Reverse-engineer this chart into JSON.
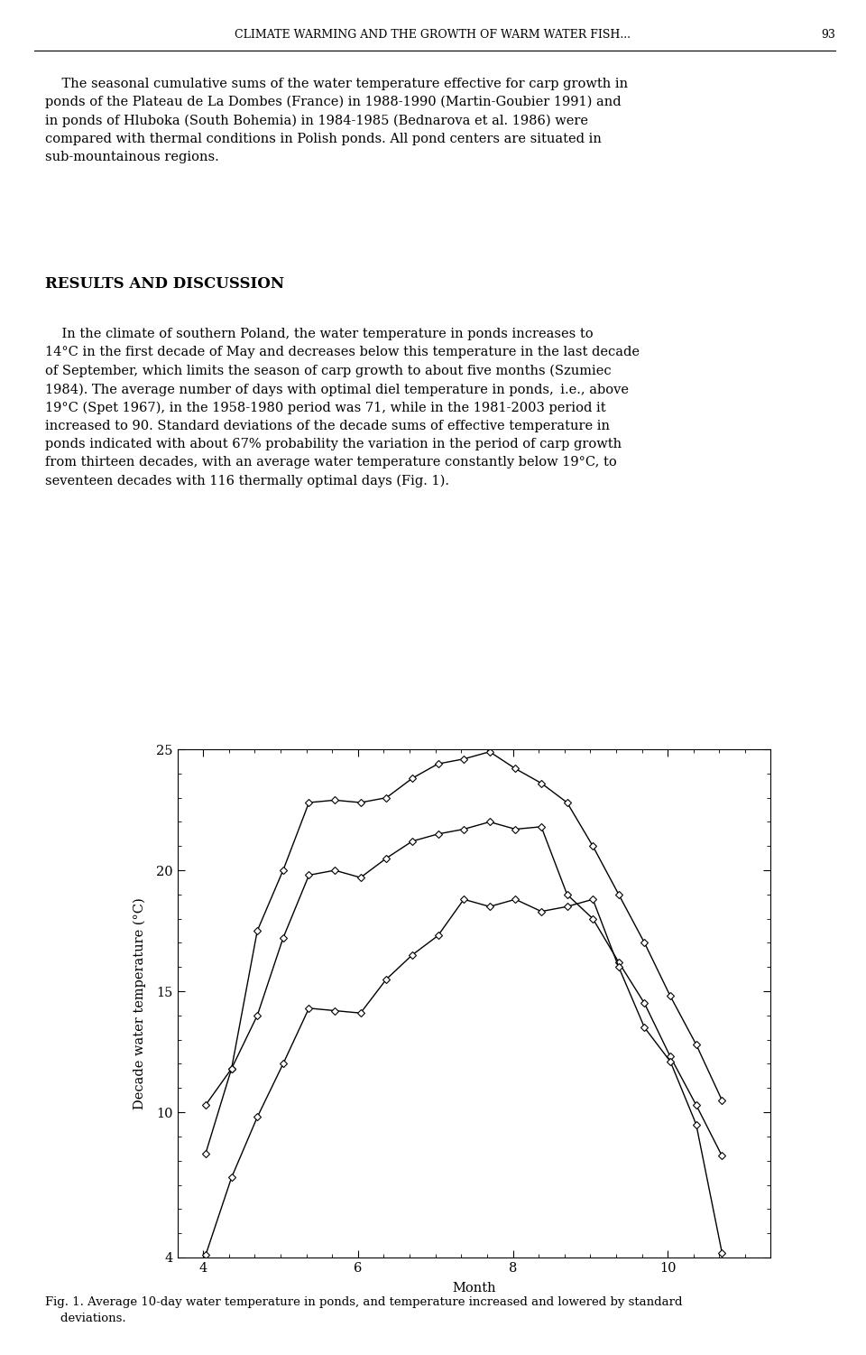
{
  "page_header": "CLIMATE WARMING AND THE GROWTH OF WARM WATER FISH...",
  "page_number": "93",
  "section_title": "RESULTS AND DISCUSSION",
  "fig_caption_line1": "Fig. 1. Average 10-day water temperature in ponds, and temperature increased and lowered by standard",
  "fig_caption_line2": "    deviations.",
  "ylabel": "Decade water temperature (°C)",
  "xlabel": "Month",
  "ylim": [
    4,
    25
  ],
  "yticks": [
    4,
    10,
    15,
    20,
    25
  ],
  "xlim": [
    3.67,
    11.33
  ],
  "xticks": [
    4,
    6,
    8,
    10
  ],
  "avg_curve": [
    [
      4.033,
      10.3
    ],
    [
      4.367,
      11.8
    ],
    [
      4.7,
      14.0
    ],
    [
      5.033,
      17.2
    ],
    [
      5.367,
      19.8
    ],
    [
      5.7,
      20.0
    ],
    [
      6.033,
      19.7
    ],
    [
      6.367,
      20.5
    ],
    [
      6.7,
      21.2
    ],
    [
      7.033,
      21.5
    ],
    [
      7.367,
      21.7
    ],
    [
      7.7,
      22.0
    ],
    [
      8.033,
      21.7
    ],
    [
      8.367,
      21.8
    ],
    [
      8.7,
      19.0
    ],
    [
      9.033,
      18.0
    ],
    [
      9.367,
      16.2
    ],
    [
      9.7,
      14.5
    ],
    [
      10.033,
      12.3
    ],
    [
      10.367,
      10.3
    ],
    [
      10.7,
      8.2
    ]
  ],
  "upper_curve": [
    [
      4.033,
      8.3
    ],
    [
      4.367,
      11.8
    ],
    [
      4.7,
      17.5
    ],
    [
      5.033,
      20.0
    ],
    [
      5.367,
      22.8
    ],
    [
      5.7,
      22.9
    ],
    [
      6.033,
      22.8
    ],
    [
      6.367,
      23.0
    ],
    [
      6.7,
      23.8
    ],
    [
      7.033,
      24.4
    ],
    [
      7.367,
      24.6
    ],
    [
      7.7,
      24.9
    ],
    [
      8.033,
      24.2
    ],
    [
      8.367,
      23.6
    ],
    [
      8.7,
      22.8
    ],
    [
      9.033,
      21.0
    ],
    [
      9.367,
      19.0
    ],
    [
      9.7,
      17.0
    ],
    [
      10.033,
      14.8
    ],
    [
      10.367,
      12.8
    ],
    [
      10.7,
      10.5
    ]
  ],
  "lower_curve": [
    [
      4.033,
      4.1
    ],
    [
      4.367,
      7.3
    ],
    [
      4.7,
      9.8
    ],
    [
      5.033,
      12.0
    ],
    [
      5.367,
      14.3
    ],
    [
      5.7,
      14.2
    ],
    [
      6.033,
      14.1
    ],
    [
      6.367,
      15.5
    ],
    [
      6.7,
      16.5
    ],
    [
      7.033,
      17.3
    ],
    [
      7.367,
      18.8
    ],
    [
      7.7,
      18.5
    ],
    [
      8.033,
      18.8
    ],
    [
      8.367,
      18.3
    ],
    [
      8.7,
      18.5
    ],
    [
      9.033,
      18.8
    ],
    [
      9.367,
      16.0
    ],
    [
      9.7,
      13.5
    ],
    [
      10.033,
      12.1
    ],
    [
      10.367,
      9.5
    ],
    [
      10.7,
      4.2
    ]
  ],
  "markersize": 4,
  "linewidth": 1.0,
  "line_color": "black",
  "bg_color": "white",
  "fig_width": 9.6,
  "fig_height": 15.01
}
